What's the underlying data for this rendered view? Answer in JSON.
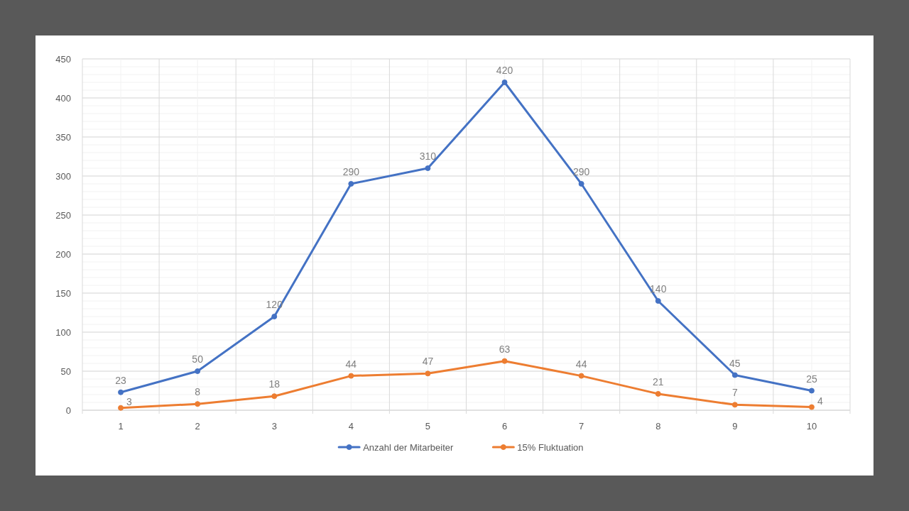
{
  "chart_data": {
    "type": "line",
    "categories": [
      "1",
      "2",
      "3",
      "4",
      "5",
      "6",
      "7",
      "8",
      "9",
      "10"
    ],
    "series": [
      {
        "name": "Anzahl der Mitarbeiter",
        "color": "#4472c4",
        "values": [
          23,
          50,
          120,
          290,
          310,
          420,
          290,
          140,
          45,
          25
        ]
      },
      {
        "name": "15% Fluktuation",
        "color": "#ed7d31",
        "values": [
          3,
          8,
          18,
          44,
          47,
          63,
          44,
          21,
          7,
          4
        ]
      }
    ],
    "ylim": [
      0,
      450
    ],
    "yticks": [
      0,
      50,
      100,
      150,
      200,
      250,
      300,
      350,
      400,
      450
    ],
    "grid": true,
    "legend": "bottom",
    "marker": "circle",
    "line_style": "solid",
    "data_labels": true
  }
}
